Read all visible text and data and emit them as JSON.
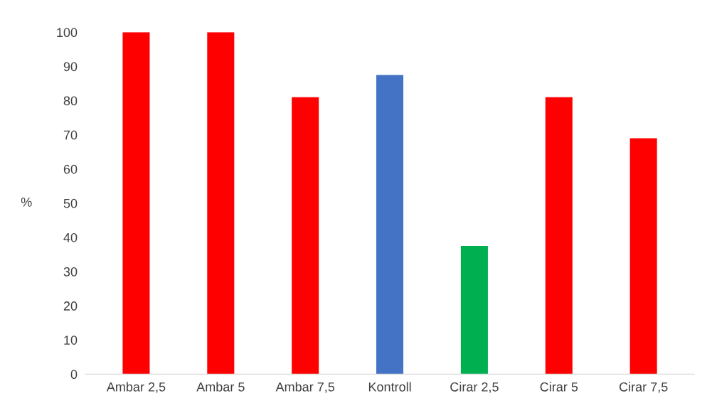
{
  "chart_data": {
    "type": "bar",
    "ylabel": "%",
    "categories": [
      "Ambar 2,5",
      "Ambar 5",
      "Ambar 7,5",
      "Kontroll",
      "Cirar 2,5",
      "Cirar 5",
      "Cirar 7,5"
    ],
    "values": [
      100,
      100,
      81,
      87.5,
      37.5,
      81,
      69
    ],
    "colors": [
      "#ff0000",
      "#ff0000",
      "#ff0000",
      "#4472c4",
      "#00b050",
      "#ff0000",
      "#ff0000"
    ],
    "ylim": [
      0,
      100
    ],
    "yticks": [
      0,
      10,
      20,
      30,
      40,
      50,
      60,
      70,
      80,
      90,
      100
    ],
    "grid": false
  }
}
